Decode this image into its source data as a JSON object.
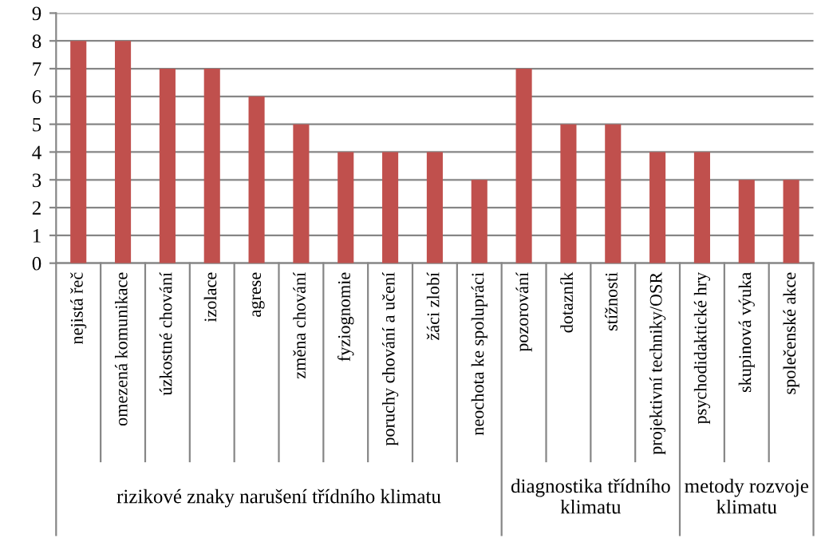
{
  "chart_data": {
    "type": "bar",
    "categories": [
      "nejistá řeč",
      "omezená komunikace",
      "úzkostné chování",
      "izolace",
      "agrese",
      "změna chování",
      "fyziognomie",
      "poruchy chování a učení",
      "žáci zlobí",
      "neochota ke spolupráci",
      "pozorování",
      "dotazník",
      "stížnosti",
      "projektivní techniky/OSR",
      "psychodidaktické hry",
      "skupinová výuka",
      "společenské akce"
    ],
    "values": [
      8,
      8,
      7,
      7,
      6,
      5,
      4,
      4,
      4,
      3,
      7,
      5,
      5,
      4,
      4,
      3,
      3
    ],
    "color": "#c0504d",
    "ylim": [
      0,
      9
    ],
    "yticks": [
      0,
      1,
      2,
      3,
      4,
      5,
      6,
      7,
      8,
      9
    ],
    "grid": "y",
    "annotations": [
      "rizikové znaky narušení třídního klimatu",
      "diagnostika třídního\nklimatu",
      "metody rozvoje\nklimatu"
    ]
  }
}
